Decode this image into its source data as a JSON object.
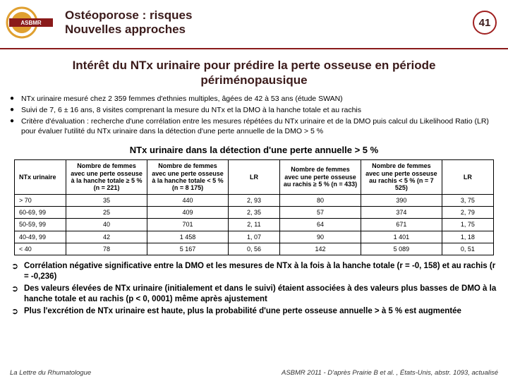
{
  "header": {
    "logo_text": "ASBMR",
    "title_line1": "Ostéoporose : risques",
    "title_line2": "Nouvelles approches",
    "page_number": "41"
  },
  "main_title": "Intérêt du NTx urinaire pour prédire la perte osseuse en période périménopausique",
  "bullets": [
    "NTx urinaire mesuré chez 2 359 femmes d'ethnies multiples, âgées de 42 à 53 ans (étude SWAN)",
    "Suivi de 7, 6 ± 16 ans, 8 visites comprenant la mesure du NTx et la DMO à la hanche totale et au rachis",
    "Critère d'évaluation : recherche d'une corrélation entre les mesures répétées du NTx urinaire et de la DMO puis calcul du Likelihood Ratio (LR) pour évaluer l'utilité du NTx urinaire dans la détection d'une perte annuelle de la DMO > 5 %"
  ],
  "table": {
    "title": "NTx urinaire dans la détection d'une perte annuelle  > 5 %",
    "headers": [
      "NTx urinaire",
      "Nombre de femmes avec une perte osseuse à la hanche totale ≥ 5 % (n = 221)",
      "Nombre de femmes avec une perte osseuse à la hanche totale < 5 % (n = 8 175)",
      "LR",
      "Nombre de femmes avec une perte osseuse au rachis ≥ 5 % (n = 433)",
      "Nombre de femmes avec une perte osseuse au rachis < 5 % (n = 7 525)",
      "LR"
    ],
    "rows": [
      [
        "> 70",
        "35",
        "440",
        "2, 93",
        "80",
        "390",
        "3, 75"
      ],
      [
        "60-69, 99",
        "25",
        "409",
        "2, 35",
        "57",
        "374",
        "2, 79"
      ],
      [
        "50-59, 99",
        "40",
        "701",
        "2, 11",
        "64",
        "671",
        "1, 75"
      ],
      [
        "40-49, 99",
        "42",
        "1 458",
        "1, 07",
        "90",
        "1 401",
        "1, 18"
      ],
      [
        "< 40",
        "78",
        "5 167",
        "0, 56",
        "142",
        "5 089",
        "0, 51"
      ]
    ]
  },
  "arrows": [
    "Corrélation négative significative entre la DMO et les mesures de NTx à la fois à la hanche totale (r = -0, 158) et au rachis (r = -0,236)",
    "Des valeurs élevées de NTx urinaire (initialement et dans le suivi) étaient associées à des valeurs plus basses de DMO à la hanche totale et au rachis (p < 0, 0001) même après ajustement",
    "Plus l'excrétion de NTx urinaire est haute, plus la probabilité d'une perte osseuse annuelle > à 5 % est augmentée"
  ],
  "footer": {
    "left": "La Lettre du Rhumatologue",
    "right": "ASBMR 2011 - D'après Prairie B et al. , États-Unis, abstr. 1093, actualisé"
  },
  "colors": {
    "accent": "#a02020",
    "border_dark": "#8a1a1a"
  }
}
